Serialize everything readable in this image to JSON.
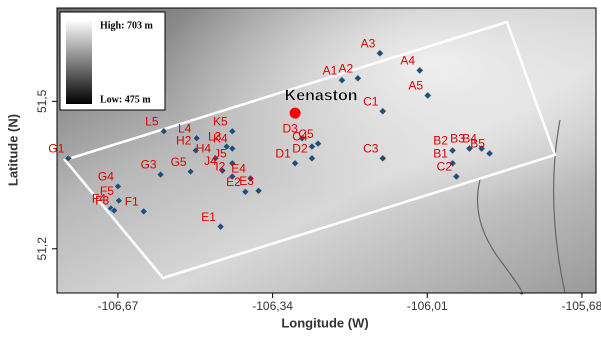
{
  "chart_data": {
    "type": "scatter",
    "x_label": "Longitude (W)",
    "y_label": "Latitude (N)",
    "xlim": [
      -106.8,
      -105.65
    ],
    "ylim": [
      51.11,
      51.69
    ],
    "xticks": [
      {
        "value": -106.67,
        "label": "-106,67"
      },
      {
        "value": -106.34,
        "label": "-106,34"
      },
      {
        "value": -106.01,
        "label": "-106,01"
      },
      {
        "value": -105.68,
        "label": "-105,68"
      }
    ],
    "yticks": [
      {
        "value": 51.2,
        "label": "51,2"
      },
      {
        "value": 51.5,
        "label": "51,5"
      }
    ],
    "legend": {
      "high": "High: 703 m",
      "low": "Low: 475 m"
    },
    "series": [
      {
        "color": "#1f4e79",
        "label_color": "#e00000",
        "point_labels": [
          "G1",
          "G4",
          "F4",
          "F5",
          "F3",
          "F1",
          "G3",
          "G5",
          "H2",
          "L5",
          "L4",
          "H4",
          "L3",
          "K5",
          "K4",
          "J5",
          "J4",
          "I2",
          "E4",
          "E3",
          "E2",
          "E1",
          "D3",
          "C4",
          "C5",
          "D2",
          "D1",
          "C3",
          "B2",
          "B3",
          "B4",
          "B5",
          "B1",
          "C2",
          "A1",
          "A2",
          "A3",
          "A4",
          "A5",
          "C1"
        ],
        "x": [
          -106.776,
          -106.67,
          -106.685,
          -106.668,
          -106.678,
          -106.615,
          -106.579,
          -106.515,
          -106.504,
          -106.572,
          -106.502,
          -106.462,
          -106.438,
          -106.426,
          -106.426,
          -106.426,
          -106.447,
          -106.426,
          -106.387,
          -106.37,
          -106.398,
          -106.451,
          -106.277,
          -106.256,
          -106.243,
          -106.256,
          -106.292,
          -106.105,
          -105.956,
          -105.92,
          -105.894,
          -105.877,
          -105.956,
          -105.948,
          -106.192,
          -106.158,
          -106.111,
          -106.026,
          -106.009,
          -106.105
        ],
        "y": [
          51.384,
          51.327,
          51.282,
          51.298,
          51.278,
          51.276,
          51.351,
          51.357,
          51.4,
          51.439,
          51.425,
          51.384,
          51.408,
          51.439,
          51.404,
          51.374,
          51.359,
          51.347,
          51.343,
          51.318,
          51.316,
          51.245,
          51.425,
          51.408,
          51.414,
          51.384,
          51.374,
          51.384,
          51.4,
          51.404,
          51.404,
          51.394,
          51.374,
          51.347,
          51.543,
          51.547,
          51.598,
          51.563,
          51.512,
          51.48
        ]
      },
      {
        "color": "#ff0000",
        "label_color": "#000000",
        "point_labels": [
          "Kenaston"
        ],
        "x": [
          -106.292
        ],
        "y": [
          51.476
        ]
      }
    ]
  }
}
